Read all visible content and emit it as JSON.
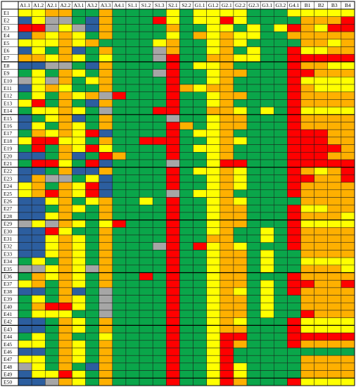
{
  "chart_data": {
    "type": "heatmap",
    "columns": [
      "A1.1",
      "A1.2",
      "A2.1",
      "A2.2",
      "A3.1",
      "A3.2",
      "A3.3",
      "A4.1",
      "S1.1",
      "S1.2",
      "S1.3",
      "S2.1",
      "S2.2",
      "G1.1",
      "G1.2",
      "G2.1",
      "G2.2",
      "G2.3",
      "G3.1",
      "G3.2",
      "G4.1",
      "B1",
      "B2",
      "B3",
      "B4"
    ],
    "rows": [
      "E1",
      "E2",
      "E3",
      "E4",
      "E5",
      "E6",
      "E7",
      "E8",
      "E9",
      "E10",
      "E11",
      "E12",
      "E13",
      "E14",
      "E15",
      "E16",
      "E17",
      "E18",
      "E19",
      "E20",
      "E21",
      "E22",
      "E23",
      "E24",
      "E25",
      "E26",
      "E27",
      "E28",
      "E29",
      "E30",
      "E31",
      "E32",
      "E33",
      "E34",
      "E35",
      "E36",
      "E37",
      "E38",
      "E39",
      "E40",
      "E41",
      "E42",
      "E43",
      "E44",
      "E45",
      "E46",
      "E47",
      "E48",
      "E49",
      "E50"
    ],
    "color_key": {
      "G": "#0aa64a",
      "Y": "#ffff00",
      "O": "#ffb000",
      "R": "#ff0000",
      "B": "#2c5e9f",
      "S": "#a6a6a6"
    },
    "cells": [
      "YYOOGGOGGGGYGYYYYGGGYYYYY",
      "BYSSGBOGGGRYGYYRYGGGGOOOR",
      "RRSYSBOGGGGOGGYYGYGYROYRR",
      "BOYOYGOGGGGYGOYOYYGGOOOOO",
      "YYYOYOGGGGYOGGYOYGGGGOOYO",
      "BYGOBGOGGGSOGGYOGYGGRYYOO",
      "OOYOYGYGGGSRGGOOYYGGRRRRR",
      "BBSSGBOGGGGRGYYOGGGGROOYY",
      "GYGOYGOGGGSRGGYOOGGGRROOO",
      "SYSOGYOGGGGRGGYOGGGGRYYYY",
      "BYOYGGOGGGGROYOOGGGGROYYY",
      "GYGOYOSRGGGRGGYOOGGGROOOO",
      "YRGOGBOGGGGRGGYOGGGGROOOO",
      "GYYOYGSGGGRRGGOOYGYGRYYYY",
      "BGYOBGOGGGGSGGYOOGGGROOOO",
      "BYGOYGOGGGGROGYOOGGGROOOO",
      "GOYOYRBGGGGRGYYOGGGGRRROO",
      "YRRYYGOGGRRRGGYOYGGGRRROO",
      "GRGOYRYGGGGRGYYOGGGGRRRRO",
      "BBGOBGROGGGRGGYOGGGGRRROO",
      "GRRYGRBGGGGSGGYRRGGGRRRRR",
      "BBGOBBOGGGGRGYYOYGGGROYOR",
      "BOSSGYBGGGGRGGYOYGGGRROOR",
      "YOGOYRBGGGGRGGYOYGGGROOOO",
      "YOROYRBGGGGSGYYOGGGGROOOO",
      "BBYOGYOGGYGRGGYOYGGGGOOOO",
      "BBGOYGOGGGGRGGYOOGGGRYYOO",
      "BBYOGGOGGGGRGGYOOGGGROOOY",
      "SYSOYGYRGGGRGGYOOGGGRYYYY",
      "BBRYGGOGGGGRGGYOGGYGROOOO",
      "BBYOYGOGGGGRGGOOGGYGROOOO",
      "BBYOYGOGGGSRGRYOYGGGROOOO",
      "BBYOYGOGGGGRGGYOOGYGGOOOO",
      "GYGOYGOGGGGRGGYOOGYGGYYYY",
      "SSYOYSOGGGGRGGYOOGYGGOOOY",
      "GOYOYGOGGRGRGGYOOGGGROOOO",
      "YOGOYGOGGGGRGGYOOGYGRROOR",
      "BBGOBGSGGGGRGGYOYGYGROOOO",
      "GYGOYGSGGGGRGGYOOGYGGOOOO",
      "GORRYGSGGGGRGGYOOGYGGOOOO",
      "GYYYGGSGGGGRGGYOOGYGGROOO",
      "BBGOYGOGGGGRGGYOYGGGRYYYY",
      "BBGOYGOGGGGRGGYOOGGGRYYYY",
      "GYGOGGYGGGGRGGYRRGGGRRRRR",
      "YYGOYGOGGGGRGGYROGGGROOOO",
      "BBGOYGOGGGGRGGYRGGGGGGGGG",
      "YYGOYGOGGGGRGGYRGGGGGOOOO",
      "SYGOGBOGGGGRGGYRYGGGGOOOO",
      "BYYRYGOGGGGRGGYRYGGGGOOOO",
      "BBSOYGOGGGGRGGYROGGGRYYYY"
    ]
  }
}
